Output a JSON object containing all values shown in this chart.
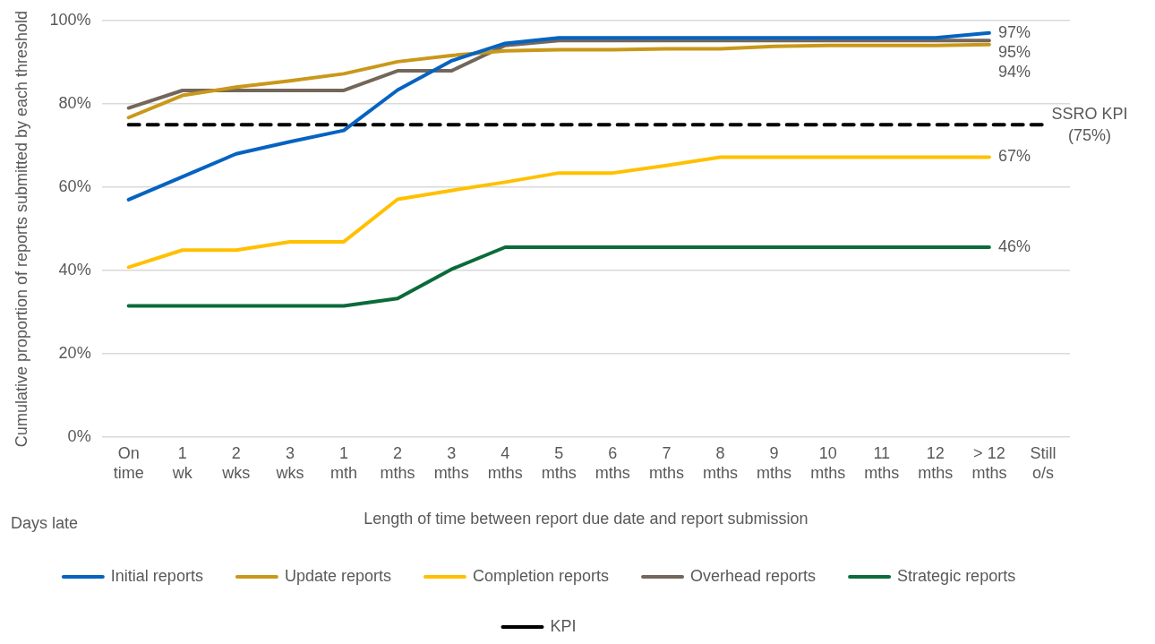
{
  "chart_data": {
    "type": "line",
    "xlabel": "Length of time between report due date and report submission",
    "ylabel": "Cumulative proportion of reports submitted by each threshold",
    "categories": [
      "On time",
      "1 wk",
      "2 wks",
      "3 wks",
      "1 mth",
      "2 mths",
      "3 mths",
      "4 mths",
      "5 mths",
      "6 mths",
      "7 mths",
      "8 mths",
      "9 mths",
      "10 mths",
      "11 mths",
      "12 mths",
      "> 12 mths",
      "Still o/s"
    ],
    "series": [
      {
        "name": "Initial reports",
        "color": "#0563c1",
        "values": [
          57.0,
          62.5,
          68.0,
          70.9,
          73.6,
          83.3,
          90.3,
          94.5,
          95.8,
          95.8,
          95.8,
          95.8,
          95.8,
          95.8,
          95.8,
          95.8,
          97,
          null
        ],
        "value_labels": [
          null,
          null,
          null,
          null,
          null,
          null,
          null,
          null,
          null,
          null,
          null,
          null,
          null,
          null,
          null,
          null,
          "97%",
          null
        ]
      },
      {
        "name": "Update reports",
        "color": "#c9981a",
        "values": [
          76.7,
          82.0,
          84.0,
          85.5,
          87.2,
          90.1,
          91.6,
          92.7,
          93.0,
          93.0,
          93.2,
          93.2,
          93.8,
          94.0,
          94.0,
          94.0,
          94.2,
          null
        ],
        "value_labels": [
          null,
          null,
          null,
          null,
          null,
          null,
          null,
          null,
          null,
          null,
          null,
          null,
          null,
          null,
          null,
          null,
          "94%",
          null
        ]
      },
      {
        "name": "Completion reports",
        "color": "#ffc000",
        "values": [
          40.8,
          44.9,
          44.9,
          46.9,
          46.9,
          57.1,
          59.2,
          61.2,
          63.4,
          63.4,
          65.2,
          67.2,
          67.2,
          67.2,
          67.2,
          67.2,
          67.2,
          null
        ],
        "value_labels": [
          null,
          null,
          null,
          null,
          null,
          null,
          null,
          null,
          null,
          null,
          null,
          null,
          null,
          null,
          null,
          null,
          "67%",
          null
        ]
      },
      {
        "name": "Overhead reports",
        "color": "#73665a",
        "values": [
          79.0,
          83.2,
          83.2,
          83.2,
          83.2,
          87.9,
          87.9,
          94.0,
          95.2,
          95.2,
          95.2,
          95.2,
          95.2,
          95.2,
          95.2,
          95.2,
          95.2,
          null
        ],
        "value_labels": [
          null,
          null,
          null,
          null,
          null,
          null,
          null,
          null,
          null,
          null,
          null,
          null,
          null,
          null,
          null,
          null,
          "95%",
          null
        ]
      },
      {
        "name": "Strategic reports",
        "color": "#0b6b3a",
        "values": [
          31.5,
          31.5,
          31.5,
          31.5,
          31.5,
          33.3,
          40.3,
          45.6,
          45.6,
          45.6,
          45.6,
          45.6,
          45.6,
          45.6,
          45.6,
          45.6,
          45.6,
          null
        ],
        "value_labels": [
          null,
          null,
          null,
          null,
          null,
          null,
          null,
          null,
          null,
          null,
          null,
          null,
          null,
          null,
          null,
          null,
          "46%",
          null
        ]
      },
      {
        "name": "KPI",
        "color": "#000000",
        "line_style": "dashed",
        "values": [
          75,
          75,
          75,
          75,
          75,
          75,
          75,
          75,
          75,
          75,
          75,
          75,
          75,
          75,
          75,
          75,
          75,
          75
        ]
      }
    ],
    "ylim": [
      0,
      100
    ],
    "yticks": [
      {
        "value": 0,
        "label": "0%"
      },
      {
        "value": 20,
        "label": "20%"
      },
      {
        "value": 40,
        "label": "40%"
      },
      {
        "value": 60,
        "label": "60%"
      },
      {
        "value": 80,
        "label": "80%"
      },
      {
        "value": 100,
        "label": "100%"
      }
    ],
    "grid": "y",
    "legend": "bottom",
    "marker": "none",
    "line_style": "solid",
    "annotations": [
      "Days late",
      {
        "text": "SSRO KPI (75%)",
        "x": "Still o/s",
        "y": 75
      }
    ]
  }
}
